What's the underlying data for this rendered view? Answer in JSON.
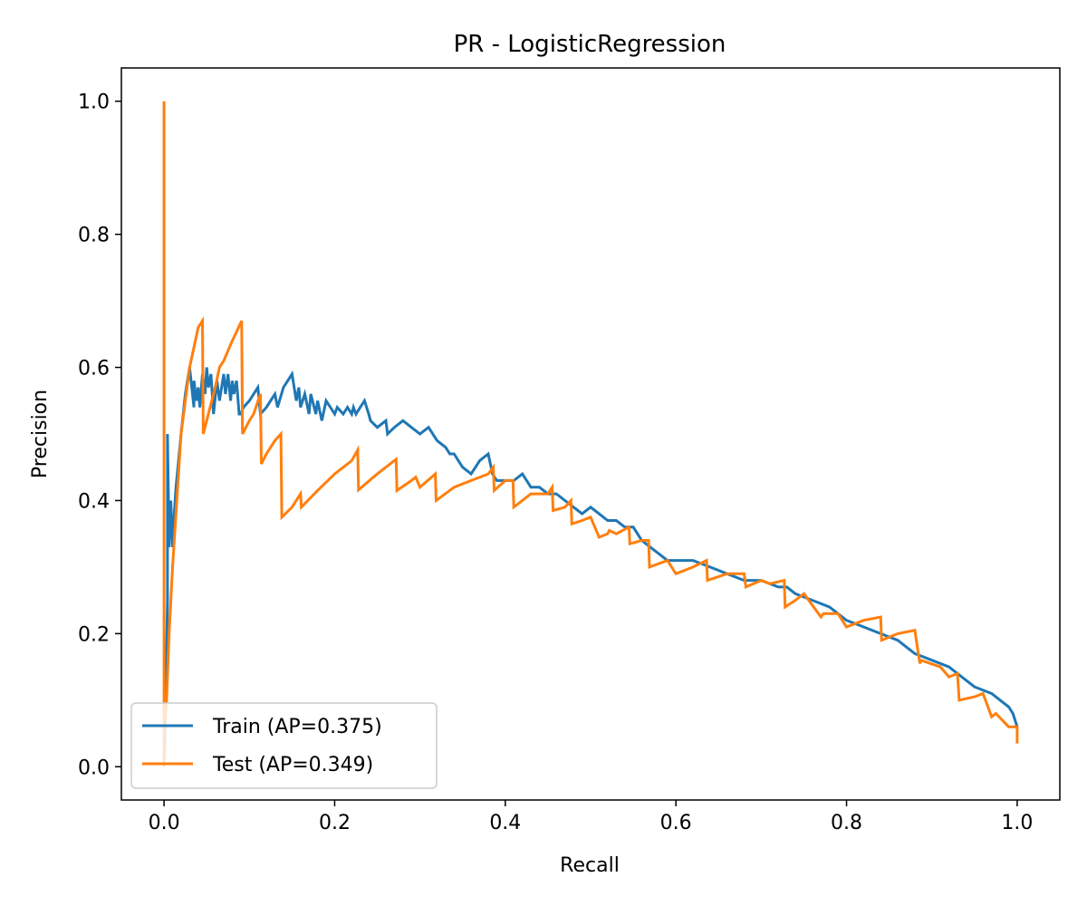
{
  "chart_data": {
    "type": "line",
    "title": "PR - LogisticRegression",
    "xlabel": "Recall",
    "ylabel": "Precision",
    "xlim": [
      -0.05,
      1.05
    ],
    "ylim": [
      -0.05,
      1.05
    ],
    "xticks": [
      0.0,
      0.2,
      0.4,
      0.6,
      0.8,
      1.0
    ],
    "xtick_labels": [
      "0.0",
      "0.2",
      "0.4",
      "0.6",
      "0.8",
      "1.0"
    ],
    "yticks": [
      0.0,
      0.2,
      0.4,
      0.6,
      0.8,
      1.0
    ],
    "ytick_labels": [
      "0.0",
      "0.2",
      "0.4",
      "0.6",
      "0.8",
      "1.0"
    ],
    "grid": false,
    "legend_position": "lower-left",
    "series": [
      {
        "name": "Train (AP=0.375)",
        "color": "#1f77b4",
        "x": [
          0.0,
          0.002,
          0.004,
          0.004,
          0.006,
          0.008,
          0.01,
          0.012,
          0.014,
          0.02,
          0.025,
          0.03,
          0.035,
          0.035,
          0.038,
          0.04,
          0.042,
          0.045,
          0.048,
          0.05,
          0.052,
          0.055,
          0.058,
          0.062,
          0.065,
          0.07,
          0.072,
          0.075,
          0.078,
          0.08,
          0.082,
          0.085,
          0.088,
          0.09,
          0.093,
          0.1,
          0.11,
          0.113,
          0.12,
          0.13,
          0.133,
          0.14,
          0.15,
          0.155,
          0.158,
          0.16,
          0.165,
          0.17,
          0.172,
          0.178,
          0.18,
          0.185,
          0.19,
          0.2,
          0.203,
          0.21,
          0.215,
          0.22,
          0.222,
          0.225,
          0.23,
          0.235,
          0.24,
          0.242,
          0.25,
          0.26,
          0.262,
          0.27,
          0.28,
          0.29,
          0.3,
          0.31,
          0.32,
          0.33,
          0.335,
          0.34,
          0.345,
          0.35,
          0.36,
          0.37,
          0.38,
          0.385,
          0.39,
          0.4,
          0.41,
          0.42,
          0.43,
          0.44,
          0.45,
          0.46,
          0.47,
          0.48,
          0.49,
          0.5,
          0.51,
          0.52,
          0.53,
          0.54,
          0.55,
          0.56,
          0.57,
          0.58,
          0.59,
          0.6,
          0.62,
          0.64,
          0.66,
          0.68,
          0.7,
          0.72,
          0.73,
          0.74,
          0.76,
          0.78,
          0.8,
          0.82,
          0.84,
          0.86,
          0.87,
          0.88,
          0.9,
          0.92,
          0.93,
          0.95,
          0.97,
          0.98,
          0.99,
          0.995,
          1.0
        ],
        "y": [
          0.0,
          0.1,
          0.25,
          0.5,
          0.33,
          0.4,
          0.33,
          0.38,
          0.42,
          0.5,
          0.56,
          0.6,
          0.54,
          0.58,
          0.55,
          0.57,
          0.54,
          0.59,
          0.56,
          0.6,
          0.57,
          0.59,
          0.53,
          0.58,
          0.55,
          0.59,
          0.56,
          0.59,
          0.55,
          0.58,
          0.56,
          0.58,
          0.53,
          0.53,
          0.54,
          0.55,
          0.57,
          0.53,
          0.54,
          0.56,
          0.54,
          0.57,
          0.59,
          0.55,
          0.57,
          0.54,
          0.56,
          0.53,
          0.56,
          0.53,
          0.55,
          0.52,
          0.55,
          0.53,
          0.54,
          0.53,
          0.54,
          0.53,
          0.54,
          0.53,
          0.54,
          0.55,
          0.53,
          0.52,
          0.51,
          0.52,
          0.5,
          0.51,
          0.52,
          0.51,
          0.5,
          0.51,
          0.49,
          0.48,
          0.47,
          0.47,
          0.46,
          0.45,
          0.44,
          0.46,
          0.47,
          0.44,
          0.43,
          0.43,
          0.43,
          0.44,
          0.42,
          0.42,
          0.41,
          0.41,
          0.4,
          0.39,
          0.38,
          0.39,
          0.38,
          0.37,
          0.37,
          0.36,
          0.36,
          0.34,
          0.33,
          0.32,
          0.31,
          0.31,
          0.31,
          0.3,
          0.29,
          0.28,
          0.28,
          0.27,
          0.27,
          0.26,
          0.25,
          0.24,
          0.22,
          0.21,
          0.2,
          0.19,
          0.18,
          0.17,
          0.16,
          0.15,
          0.14,
          0.12,
          0.11,
          0.1,
          0.09,
          0.08,
          0.06
        ]
      },
      {
        "name": "Test (AP=0.349)",
        "color": "#ff7f0e",
        "x": [
          0.0,
          0.0,
          0.0,
          0.003,
          0.006,
          0.01,
          0.015,
          0.02,
          0.025,
          0.03,
          0.035,
          0.04,
          0.045,
          0.046,
          0.05,
          0.056,
          0.06,
          0.065,
          0.07,
          0.08,
          0.091,
          0.092,
          0.1,
          0.105,
          0.113,
          0.114,
          0.12,
          0.13,
          0.137,
          0.138,
          0.15,
          0.16,
          0.161,
          0.18,
          0.2,
          0.22,
          0.227,
          0.228,
          0.25,
          0.272,
          0.273,
          0.29,
          0.295,
          0.3,
          0.318,
          0.319,
          0.34,
          0.36,
          0.38,
          0.386,
          0.387,
          0.4,
          0.409,
          0.41,
          0.43,
          0.45,
          0.455,
          0.456,
          0.47,
          0.477,
          0.478,
          0.49,
          0.5,
          0.51,
          0.52,
          0.522,
          0.53,
          0.545,
          0.546,
          0.56,
          0.568,
          0.569,
          0.59,
          0.6,
          0.62,
          0.636,
          0.637,
          0.66,
          0.68,
          0.682,
          0.7,
          0.71,
          0.727,
          0.728,
          0.74,
          0.75,
          0.77,
          0.773,
          0.79,
          0.8,
          0.82,
          0.84,
          0.841,
          0.86,
          0.88,
          0.886,
          0.887,
          0.91,
          0.92,
          0.93,
          0.932,
          0.95,
          0.96,
          0.97,
          0.975,
          0.99,
          1.0,
          1.0
        ],
        "y": [
          0.0,
          1.0,
          0.05,
          0.1,
          0.2,
          0.3,
          0.4,
          0.5,
          0.55,
          0.6,
          0.63,
          0.66,
          0.67,
          0.5,
          0.52,
          0.55,
          0.57,
          0.6,
          0.61,
          0.64,
          0.67,
          0.5,
          0.52,
          0.53,
          0.56,
          0.455,
          0.47,
          0.49,
          0.5,
          0.375,
          0.39,
          0.41,
          0.39,
          0.415,
          0.44,
          0.46,
          0.476,
          0.416,
          0.44,
          0.462,
          0.415,
          0.43,
          0.435,
          0.42,
          0.44,
          0.4,
          0.42,
          0.43,
          0.44,
          0.45,
          0.415,
          0.43,
          0.43,
          0.39,
          0.41,
          0.41,
          0.42,
          0.385,
          0.39,
          0.4,
          0.365,
          0.37,
          0.375,
          0.345,
          0.35,
          0.355,
          0.35,
          0.36,
          0.335,
          0.34,
          0.34,
          0.3,
          0.31,
          0.29,
          0.3,
          0.31,
          0.28,
          0.29,
          0.29,
          0.27,
          0.28,
          0.275,
          0.28,
          0.24,
          0.25,
          0.26,
          0.225,
          0.23,
          0.23,
          0.21,
          0.22,
          0.225,
          0.19,
          0.2,
          0.205,
          0.155,
          0.16,
          0.15,
          0.135,
          0.14,
          0.1,
          0.105,
          0.11,
          0.075,
          0.08,
          0.06,
          0.06,
          0.035
        ]
      }
    ]
  }
}
